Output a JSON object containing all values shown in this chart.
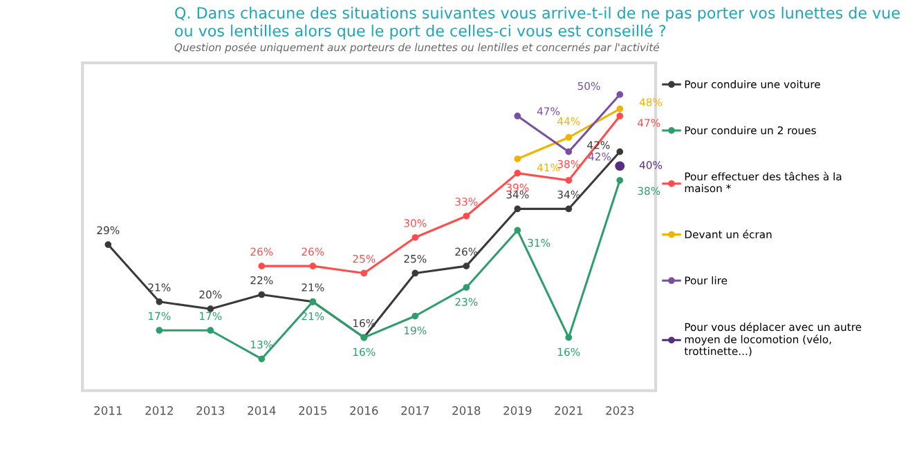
{
  "chart_data": {
    "type": "line",
    "title": "Q. Dans chacune des situations suivantes vous arrive-t-il de ne pas porter vos lunettes de vue ou vos lentilles alors que le port de celles-ci vous est conseillé ?",
    "subtitle": "Question posée uniquement aux porteurs de lunettes ou lentilles et concernés par l'activité",
    "categories": [
      "2011",
      "2012",
      "2013",
      "2014",
      "2015",
      "2016",
      "2017",
      "2018",
      "2019",
      "2021",
      "2023"
    ],
    "series": [
      {
        "name": "Pour conduire une voiture",
        "color": "#3a3a3a",
        "values": [
          29,
          21,
          20,
          22,
          21,
          16,
          25,
          26,
          34,
          34,
          42
        ],
        "value_labels": [
          "29%",
          "21%",
          "20%",
          "22%",
          "21%",
          "16%",
          "25%",
          "26%",
          "34%",
          "34%",
          "42%"
        ]
      },
      {
        "name": "Pour conduire un 2 roues",
        "color": "#2e9e6a",
        "values": [
          null,
          17,
          17,
          13,
          21,
          16,
          19,
          23,
          31,
          16,
          38
        ],
        "value_labels": [
          null,
          "17%",
          "17%",
          "13%",
          "21%",
          "16%",
          "19%",
          "23%",
          "31%",
          "16%",
          "38%"
        ]
      },
      {
        "name": "Pour effectuer des tâches à la maison *",
        "color": "#ff4d4d",
        "values": [
          null,
          null,
          null,
          26,
          26,
          25,
          30,
          33,
          39,
          38,
          47
        ],
        "value_labels": [
          null,
          null,
          null,
          "26%",
          "26%",
          "25%",
          "30%",
          "33%",
          "39%",
          "38%",
          "47%"
        ]
      },
      {
        "name": "Devant un écran",
        "color": "#f0b400",
        "values": [
          null,
          null,
          null,
          null,
          null,
          null,
          null,
          null,
          41,
          44,
          48
        ],
        "value_labels": [
          null,
          null,
          null,
          null,
          null,
          null,
          null,
          null,
          "41%",
          "44%",
          "48%"
        ]
      },
      {
        "name": "Pour lire",
        "color": "#7a4fa0",
        "values": [
          null,
          null,
          null,
          null,
          null,
          null,
          null,
          null,
          47,
          42,
          50
        ],
        "value_labels": [
          null,
          null,
          null,
          null,
          null,
          null,
          null,
          null,
          "47%",
          "42%",
          "50%"
        ]
      },
      {
        "name": "Pour vous déplacer avec un autre moyen de locomotion (vélo, trottinette...)",
        "color": "#5b2c83",
        "values": [
          null,
          null,
          null,
          null,
          null,
          null,
          null,
          null,
          null,
          null,
          40
        ],
        "value_labels": [
          null,
          null,
          null,
          null,
          null,
          null,
          null,
          null,
          null,
          null,
          "40%"
        ]
      }
    ],
    "marker": "circle",
    "line_style": "solid",
    "grid": false,
    "legend": "right",
    "tick_labels": "x"
  }
}
